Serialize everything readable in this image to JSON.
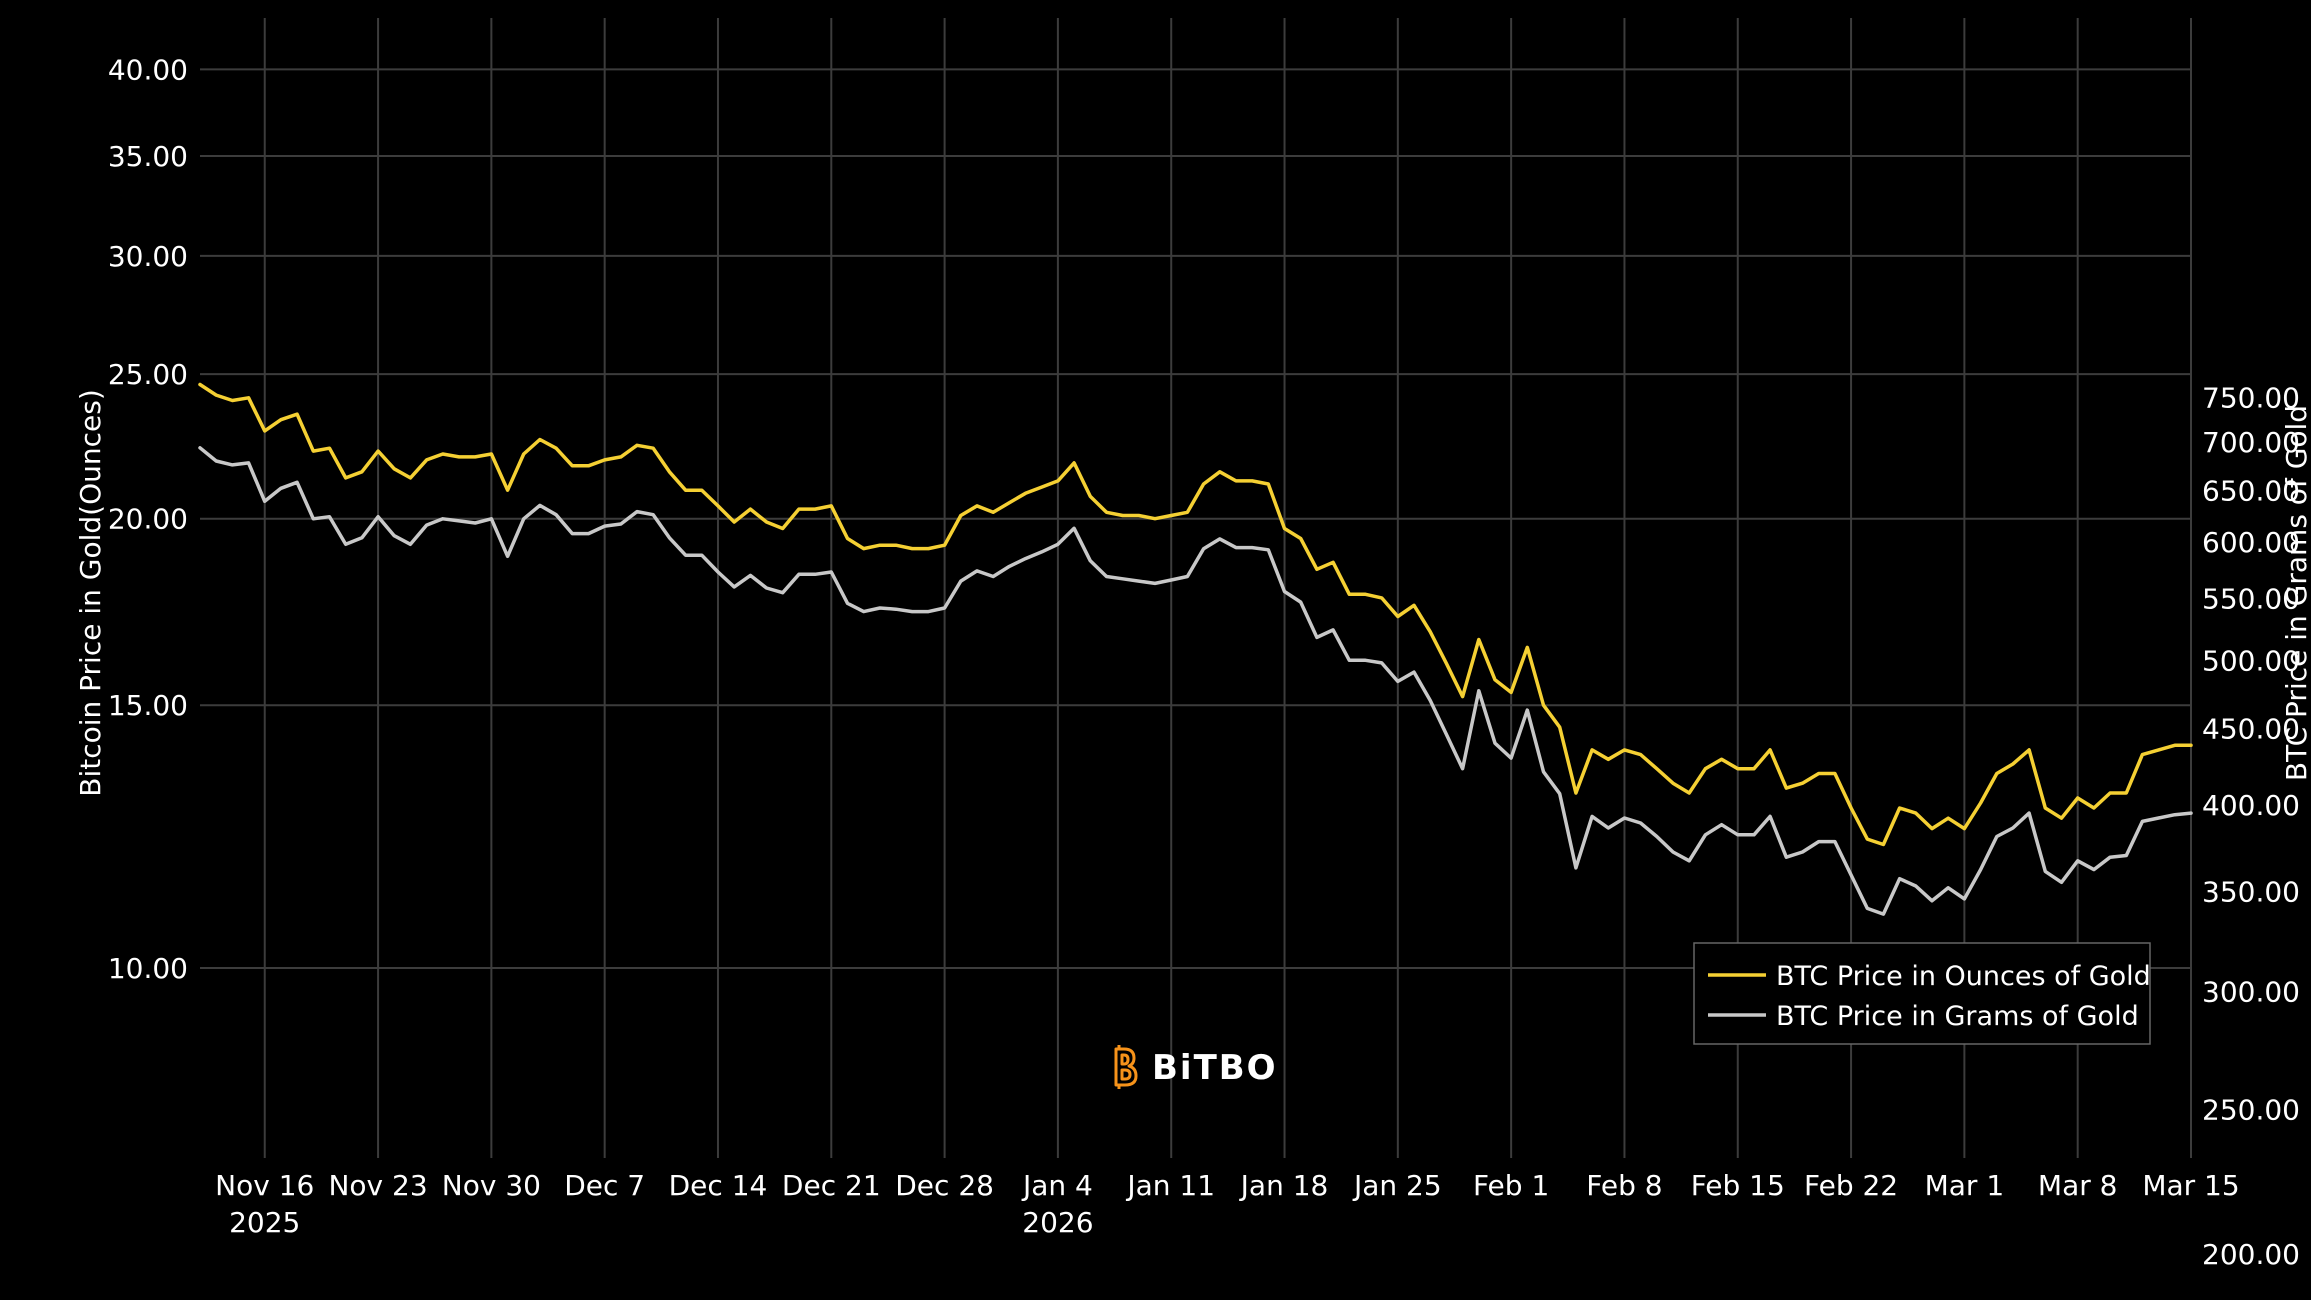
{
  "chart_data": {
    "type": "line",
    "x_ticks": [
      {
        "date": "2025-11-16",
        "label": "Nov 16",
        "year": "2025"
      },
      {
        "date": "2025-11-23",
        "label": "Nov 23",
        "year": ""
      },
      {
        "date": "2025-11-30",
        "label": "Nov 30",
        "year": ""
      },
      {
        "date": "2025-12-07",
        "label": "Dec 7",
        "year": ""
      },
      {
        "date": "2025-12-14",
        "label": "Dec 14",
        "year": ""
      },
      {
        "date": "2025-12-21",
        "label": "Dec 21",
        "year": ""
      },
      {
        "date": "2025-12-28",
        "label": "Dec 28",
        "year": ""
      },
      {
        "date": "2026-01-04",
        "label": "Jan 4",
        "year": "2026"
      },
      {
        "date": "2026-01-11",
        "label": "Jan 11",
        "year": ""
      },
      {
        "date": "2026-01-18",
        "label": "Jan 18",
        "year": ""
      },
      {
        "date": "2026-01-25",
        "label": "Jan 25",
        "year": ""
      },
      {
        "date": "2026-02-01",
        "label": "Feb 1",
        "year": ""
      },
      {
        "date": "2026-02-08",
        "label": "Feb 8",
        "year": ""
      },
      {
        "date": "2026-02-15",
        "label": "Feb 15",
        "year": ""
      },
      {
        "date": "2026-02-22",
        "label": "Feb 22",
        "year": ""
      },
      {
        "date": "2026-03-01",
        "label": "Mar 1",
        "year": ""
      },
      {
        "date": "2026-03-08",
        "label": "Mar 8",
        "year": ""
      },
      {
        "date": "2026-03-15",
        "label": "Mar 15",
        "year": ""
      }
    ],
    "xlim": [
      "2025-11-12",
      "2026-03-15"
    ],
    "y_left": {
      "label": "Bitcoin Price in Gold(Ounces)",
      "scale": "log",
      "range": [
        7.46,
        43.3
      ],
      "ticks": [
        "10.00",
        "15.00",
        "20.00",
        "25.00",
        "30.00",
        "35.00",
        "40.00"
      ]
    },
    "y_right": {
      "label": "BTC Price in Grams of Gold",
      "scale": "log",
      "range": [
        232,
        1347
      ],
      "ticks": [
        "200.00",
        "250.00",
        "300.00",
        "350.00",
        "400.00",
        "450.00",
        "500.00",
        "550.00",
        "600.00",
        "650.00",
        "700.00",
        "750.00"
      ]
    },
    "grid": true,
    "legend_position": "bottom-right",
    "series": [
      {
        "name": "BTC Price in Ounces of Gold",
        "axis": "left",
        "color": "#f5d033",
        "x": [
          "2025-11-12",
          "2025-11-13",
          "2025-11-14",
          "2025-11-15",
          "2025-11-16",
          "2025-11-17",
          "2025-11-18",
          "2025-11-19",
          "2025-11-20",
          "2025-11-21",
          "2025-11-22",
          "2025-11-23",
          "2025-11-24",
          "2025-11-25",
          "2025-11-26",
          "2025-11-27",
          "2025-11-28",
          "2025-11-29",
          "2025-11-30",
          "2025-12-01",
          "2025-12-02",
          "2025-12-03",
          "2025-12-04",
          "2025-12-05",
          "2025-12-06",
          "2025-12-07",
          "2025-12-08",
          "2025-12-09",
          "2025-12-10",
          "2025-12-11",
          "2025-12-12",
          "2025-12-13",
          "2025-12-14",
          "2025-12-15",
          "2025-12-16",
          "2025-12-17",
          "2025-12-18",
          "2025-12-19",
          "2025-12-20",
          "2025-12-21",
          "2025-12-22",
          "2025-12-23",
          "2025-12-24",
          "2025-12-25",
          "2025-12-26",
          "2025-12-27",
          "2025-12-28",
          "2025-12-29",
          "2025-12-30",
          "2025-12-31",
          "2026-01-01",
          "2026-01-02",
          "2026-01-03",
          "2026-01-04",
          "2026-01-05",
          "2026-01-06",
          "2026-01-07",
          "2026-01-08",
          "2026-01-09",
          "2026-01-10",
          "2026-01-11",
          "2026-01-12",
          "2026-01-13",
          "2026-01-14",
          "2026-01-15",
          "2026-01-16",
          "2026-01-17",
          "2026-01-18",
          "2026-01-19",
          "2026-01-20",
          "2026-01-21",
          "2026-01-22",
          "2026-01-23",
          "2026-01-24",
          "2026-01-25",
          "2026-01-26",
          "2026-01-27",
          "2026-01-28",
          "2026-01-29",
          "2026-01-30",
          "2026-01-31",
          "2026-02-01",
          "2026-02-02",
          "2026-02-03",
          "2026-02-04",
          "2026-02-05",
          "2026-02-06",
          "2026-02-07",
          "2026-02-08",
          "2026-02-09",
          "2026-02-10",
          "2026-02-11",
          "2026-02-12",
          "2026-02-13",
          "2026-02-14",
          "2026-02-15",
          "2026-02-16",
          "2026-02-17",
          "2026-02-18",
          "2026-02-19",
          "2026-02-20",
          "2026-02-21",
          "2026-02-22",
          "2026-02-23",
          "2026-02-24",
          "2026-02-25",
          "2026-02-26",
          "2026-02-27",
          "2026-02-28",
          "2026-03-01",
          "2026-03-02",
          "2026-03-03",
          "2026-03-04",
          "2026-03-05",
          "2026-03-06",
          "2026-03-07",
          "2026-03-08",
          "2026-03-09",
          "2026-03-10",
          "2026-03-11",
          "2026-03-12",
          "2026-03-13",
          "2026-03-14",
          "2026-03-15"
        ],
        "y": [
          24.6,
          24.2,
          24.0,
          24.1,
          22.9,
          23.3,
          23.5,
          22.2,
          22.3,
          21.3,
          21.5,
          22.2,
          21.6,
          21.3,
          21.9,
          22.1,
          22.0,
          22.0,
          22.1,
          20.9,
          22.1,
          22.6,
          22.3,
          21.7,
          21.7,
          21.9,
          22.0,
          22.4,
          22.3,
          21.5,
          20.9,
          20.9,
          20.4,
          19.9,
          20.3,
          19.9,
          19.7,
          20.3,
          20.3,
          20.4,
          19.4,
          19.1,
          19.2,
          19.2,
          19.1,
          19.1,
          19.2,
          20.1,
          20.4,
          20.2,
          20.5,
          20.8,
          21.0,
          21.2,
          21.8,
          20.7,
          20.2,
          20.1,
          20.1,
          20.0,
          20.1,
          20.2,
          21.1,
          21.5,
          21.2,
          21.2,
          21.1,
          19.7,
          19.4,
          18.5,
          18.7,
          17.8,
          17.8,
          17.7,
          17.2,
          17.5,
          16.8,
          16.0,
          15.2,
          16.6,
          15.6,
          15.3,
          16.4,
          15.0,
          14.5,
          13.1,
          14.0,
          13.8,
          14.0,
          13.9,
          13.6,
          13.3,
          13.1,
          13.6,
          13.8,
          13.6,
          13.6,
          14.0,
          13.2,
          13.3,
          13.5,
          13.5,
          12.8,
          12.2,
          12.1,
          12.8,
          12.7,
          12.4,
          12.6,
          12.4,
          12.9,
          13.5,
          13.7,
          14.0,
          12.8,
          12.6,
          13.0,
          12.8,
          13.1,
          13.1,
          13.9,
          14.0,
          14.1,
          14.1
        ]
      },
      {
        "name": "BTC Price in Grams of Gold",
        "axis": "right",
        "color": "#c8c8c8",
        "x": [
          "2025-11-12",
          "2025-11-13",
          "2025-11-14",
          "2025-11-15",
          "2025-11-16",
          "2025-11-17",
          "2025-11-18",
          "2025-11-19",
          "2025-11-20",
          "2025-11-21",
          "2025-11-22",
          "2025-11-23",
          "2025-11-24",
          "2025-11-25",
          "2025-11-26",
          "2025-11-27",
          "2025-11-28",
          "2025-11-29",
          "2025-11-30",
          "2025-12-01",
          "2025-12-02",
          "2025-12-03",
          "2025-12-04",
          "2025-12-05",
          "2025-12-06",
          "2025-12-07",
          "2025-12-08",
          "2025-12-09",
          "2025-12-10",
          "2025-12-11",
          "2025-12-12",
          "2025-12-13",
          "2025-12-14",
          "2025-12-15",
          "2025-12-16",
          "2025-12-17",
          "2025-12-18",
          "2025-12-19",
          "2025-12-20",
          "2025-12-21",
          "2025-12-22",
          "2025-12-23",
          "2025-12-24",
          "2025-12-25",
          "2025-12-26",
          "2025-12-27",
          "2025-12-28",
          "2025-12-29",
          "2025-12-30",
          "2025-12-31",
          "2026-01-01",
          "2026-01-02",
          "2026-01-03",
          "2026-01-04",
          "2026-01-05",
          "2026-01-06",
          "2026-01-07",
          "2026-01-08",
          "2026-01-09",
          "2026-01-10",
          "2026-01-11",
          "2026-01-12",
          "2026-01-13",
          "2026-01-14",
          "2026-01-15",
          "2026-01-16",
          "2026-01-17",
          "2026-01-18",
          "2026-01-19",
          "2026-01-20",
          "2026-01-21",
          "2026-01-22",
          "2026-01-23",
          "2026-01-24",
          "2026-01-25",
          "2026-01-26",
          "2026-01-27",
          "2026-01-28",
          "2026-01-29",
          "2026-01-30",
          "2026-01-31",
          "2026-02-01",
          "2026-02-02",
          "2026-02-03",
          "2026-02-04",
          "2026-02-05",
          "2026-02-06",
          "2026-02-07",
          "2026-02-08",
          "2026-02-09",
          "2026-02-10",
          "2026-02-11",
          "2026-02-12",
          "2026-02-13",
          "2026-02-14",
          "2026-02-15",
          "2026-02-16",
          "2026-02-17",
          "2026-02-18",
          "2026-02-19",
          "2026-02-20",
          "2026-02-21",
          "2026-02-22",
          "2026-02-23",
          "2026-02-24",
          "2026-02-25",
          "2026-02-26",
          "2026-02-27",
          "2026-02-28",
          "2026-03-01",
          "2026-03-02",
          "2026-03-03",
          "2026-03-04",
          "2026-03-05",
          "2026-03-06",
          "2026-03-07",
          "2026-03-08",
          "2026-03-09",
          "2026-03-10",
          "2026-03-11",
          "2026-03-12",
          "2026-03-13",
          "2026-03-14",
          "2026-03-15"
        ],
        "y": [
          694,
          680,
          676,
          678,
          639,
          652,
          658,
          622,
          624,
          598,
          604,
          624,
          606,
          598,
          616,
          622,
          620,
          618,
          622,
          587,
          622,
          635,
          626,
          608,
          608,
          615,
          617,
          629,
          626,
          604,
          588,
          588,
          573,
          560,
          570,
          559,
          555,
          571,
          571,
          573,
          546,
          539,
          542,
          541,
          539,
          539,
          542,
          565,
          574,
          569,
          578,
          585,
          591,
          598,
          613,
          583,
          569,
          567,
          565,
          563,
          566,
          569,
          594,
          603,
          595,
          595,
          593,
          556,
          547,
          518,
          524,
          500,
          500,
          498,
          484,
          491,
          470,
          446,
          423,
          477,
          440,
          430,
          463,
          421,
          407,
          363,
          393,
          386,
          392,
          389,
          381,
          372,
          367,
          382,
          388,
          382,
          382,
          393,
          369,
          372,
          378,
          378,
          359,
          341,
          338,
          357,
          353,
          345,
          352,
          346,
          362,
          381,
          386,
          395,
          361,
          355,
          367,
          362,
          369,
          370,
          390,
          392,
          394,
          395
        ]
      }
    ]
  },
  "legend": {
    "items": [
      {
        "label": "BTC Price in Ounces of Gold",
        "color": "#f5d033"
      },
      {
        "label": "BTC Price in Grams of Gold",
        "color": "#c8c8c8"
      }
    ]
  },
  "logo": {
    "text": "BiTBO",
    "icon_color": "#f7931a"
  }
}
